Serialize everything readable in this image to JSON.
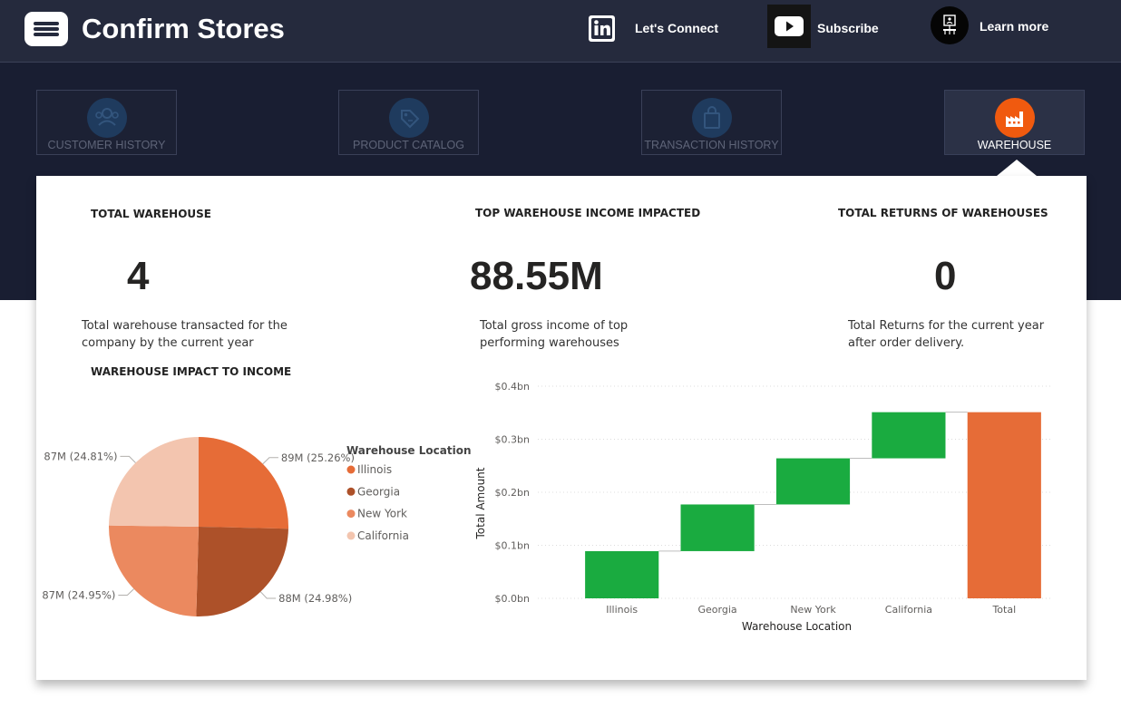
{
  "app": {
    "title": "Confirm Stores"
  },
  "header_links": [
    {
      "label": "Let's Connect",
      "icon": "linkedin-icon"
    },
    {
      "label": "Subscribe",
      "icon": "youtube-icon"
    },
    {
      "label": "Learn more",
      "icon": "presenter-icon"
    }
  ],
  "tabs": [
    {
      "label": "CUSTOMER HISTORY",
      "icon": "customers-icon",
      "active": false
    },
    {
      "label": "PRODUCT CATALOG",
      "icon": "tag-icon",
      "active": false
    },
    {
      "label": "TRANSACTION HISTORY",
      "icon": "shopping-bag-icon",
      "active": false
    },
    {
      "label": "WAREHOUSE",
      "icon": "factory-icon",
      "active": true
    }
  ],
  "kpis": [
    {
      "title": "TOTAL WAREHOUSE",
      "value": "4",
      "description": "Total warehouse transacted for the company by the current year"
    },
    {
      "title": "TOP WAREHOUSE INCOME IMPACTED",
      "value": "88.55M",
      "description": "Total gross income of top performing warehouses"
    },
    {
      "title": "TOTAL RETURNS OF WAREHOUSES",
      "value": "0",
      "description": "Total Returns for the current year after order delivery."
    }
  ],
  "colors": {
    "header_bg": "#252a3d",
    "nav_bg": "#191e32",
    "accent": "#f05a0f",
    "increase": "#1aab40",
    "total": "#e66c37"
  },
  "chart_data": [
    {
      "type": "pie",
      "title": "WAREHOUSE IMPACT TO INCOME",
      "legend_title": "Warehouse Location",
      "legend_position": "right",
      "slices": [
        {
          "name": "Illinois",
          "value": 89,
          "label": "89M (25.26%)",
          "color": "#e66c37"
        },
        {
          "name": "Georgia",
          "value": 88,
          "label": "88M (24.98%)",
          "color": "#ad5129"
        },
        {
          "name": "New York",
          "value": 87,
          "label": "87M (24.95%)",
          "color": "#eb895f"
        },
        {
          "name": "California",
          "value": 87,
          "label": "87M (24.81%)",
          "color": "#f3c5af"
        }
      ]
    },
    {
      "type": "waterfall",
      "title": "",
      "xlabel": "Warehouse Location",
      "ylabel": "Total Amount",
      "categories": [
        "Illinois",
        "Georgia",
        "New York",
        "California",
        "Total"
      ],
      "values": [
        0.089,
        0.088,
        0.087,
        0.087,
        0.351
      ],
      "ylim": [
        0,
        0.4
      ],
      "yticks": [
        {
          "value": 0,
          "label": "$0.0bn"
        },
        {
          "value": 0.1,
          "label": "$0.1bn"
        },
        {
          "value": 0.2,
          "label": "$0.2bn"
        },
        {
          "value": 0.3,
          "label": "$0.3bn"
        },
        {
          "value": 0.4,
          "label": "$0.4bn"
        }
      ],
      "grid": true
    }
  ]
}
